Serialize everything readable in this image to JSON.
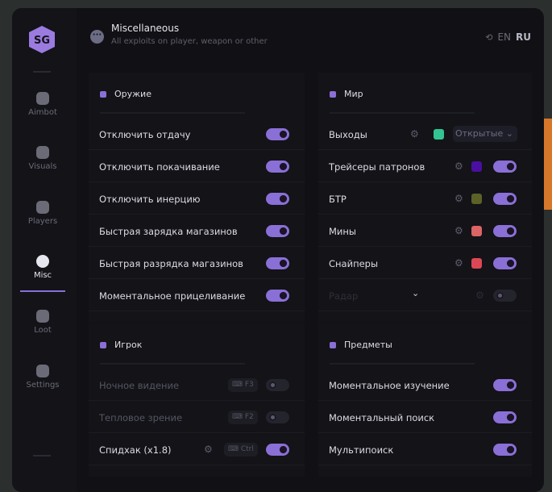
{
  "header": {
    "title": "Miscellaneous",
    "subtitle": "All exploits on player, weapon or other",
    "icon": "more-dots-icon"
  },
  "language": {
    "options": [
      "EN",
      "RU"
    ],
    "selected": "RU",
    "icon": "translate-icon"
  },
  "sidebar": {
    "items": [
      {
        "label": "Aimbot",
        "icon": "alien-icon"
      },
      {
        "label": "Visuals",
        "icon": "vr-headset-icon"
      },
      {
        "label": "Players",
        "icon": "users-icon"
      },
      {
        "label": "Misc",
        "icon": "more-dots-icon",
        "active": true
      },
      {
        "label": "Loot",
        "icon": "briefcase-icon"
      },
      {
        "label": "Settings",
        "icon": "list-icon"
      }
    ]
  },
  "accent": "#8a6fd6",
  "weapon": {
    "title": "Оружие",
    "rows": [
      {
        "label": "Отключить отдачу",
        "on": true
      },
      {
        "label": "Отключить покачивание",
        "on": true
      },
      {
        "label": "Отключить инерцию",
        "on": true
      },
      {
        "label": "Быстрая зарядка магазинов",
        "on": true
      },
      {
        "label": "Быстрая разрядка магазинов",
        "on": true
      },
      {
        "label": "Моментальное прицеливание",
        "on": true
      }
    ]
  },
  "world": {
    "title": "Мир",
    "rows": [
      {
        "label": "Выходы",
        "color": "#33c493",
        "select": "Открытые"
      },
      {
        "label": "Трейсеры патронов",
        "color": "#4a0fa0",
        "on": true
      },
      {
        "label": "БТР",
        "color": "#5c6128",
        "on": true
      },
      {
        "label": "Мины",
        "color": "#dc6466",
        "on": true
      },
      {
        "label": "Снайперы",
        "color": "#dc4756",
        "on": true
      },
      {
        "label": "Радар",
        "on": false
      }
    ]
  },
  "player": {
    "title": "Игрок",
    "rows": [
      {
        "label": "Ночное видение",
        "key": "F3",
        "on": false
      },
      {
        "label": "Тепловое зрение",
        "key": "F2",
        "on": false
      },
      {
        "label": "Спидхак (x1.8)",
        "key": "Ctrl",
        "on": true
      }
    ]
  },
  "items": {
    "title": "Предметы",
    "rows": [
      {
        "label": "Моментальное изучение",
        "on": true
      },
      {
        "label": "Моментальный поиск",
        "on": true
      },
      {
        "label": "Мультипоиск",
        "on": true
      }
    ]
  }
}
